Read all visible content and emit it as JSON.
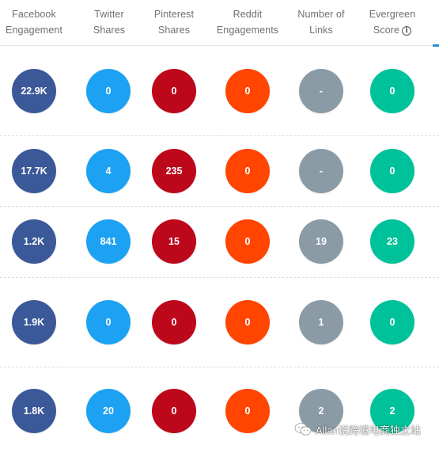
{
  "colors": {
    "facebook": "#3b5998",
    "twitter": "#1da1f2",
    "pinterest": "#bd081c",
    "reddit": "#ff4500",
    "links": "#8b9ba5",
    "evergreen": "#00c29a",
    "accent": "#2a8fd3"
  },
  "columns": [
    {
      "key": "facebook",
      "line1": "Facebook",
      "line2": "Engagement"
    },
    {
      "key": "twitter",
      "line1": "Twitter",
      "line2": "Shares"
    },
    {
      "key": "pinterest",
      "line1": "Pinterest",
      "line2": "Shares"
    },
    {
      "key": "reddit",
      "line1": "Reddit",
      "line2": "Engagements"
    },
    {
      "key": "links",
      "line1": "Number of",
      "line2": "Links"
    },
    {
      "key": "evergreen",
      "line1": "Evergreen",
      "line2": "Score",
      "icon": "info-icon"
    }
  ],
  "rows": [
    {
      "facebook": "22.9K",
      "twitter": "0",
      "pinterest": "0",
      "reddit": "0",
      "links": "-",
      "evergreen": "0"
    },
    {
      "facebook": "17.7K",
      "twitter": "4",
      "pinterest": "235",
      "reddit": "0",
      "links": "-",
      "evergreen": "0"
    },
    {
      "facebook": "1.2K",
      "twitter": "841",
      "pinterest": "15",
      "reddit": "0",
      "links": "19",
      "evergreen": "23"
    },
    {
      "facebook": "1.9K",
      "twitter": "0",
      "pinterest": "0",
      "reddit": "0",
      "links": "1",
      "evergreen": "0"
    },
    {
      "facebook": "1.8K",
      "twitter": "20",
      "pinterest": "0",
      "reddit": "0",
      "links": "2",
      "evergreen": "2"
    }
  ],
  "watermark": {
    "text": "Allan说跨境电商独立站",
    "icon": "wechat-icon"
  }
}
